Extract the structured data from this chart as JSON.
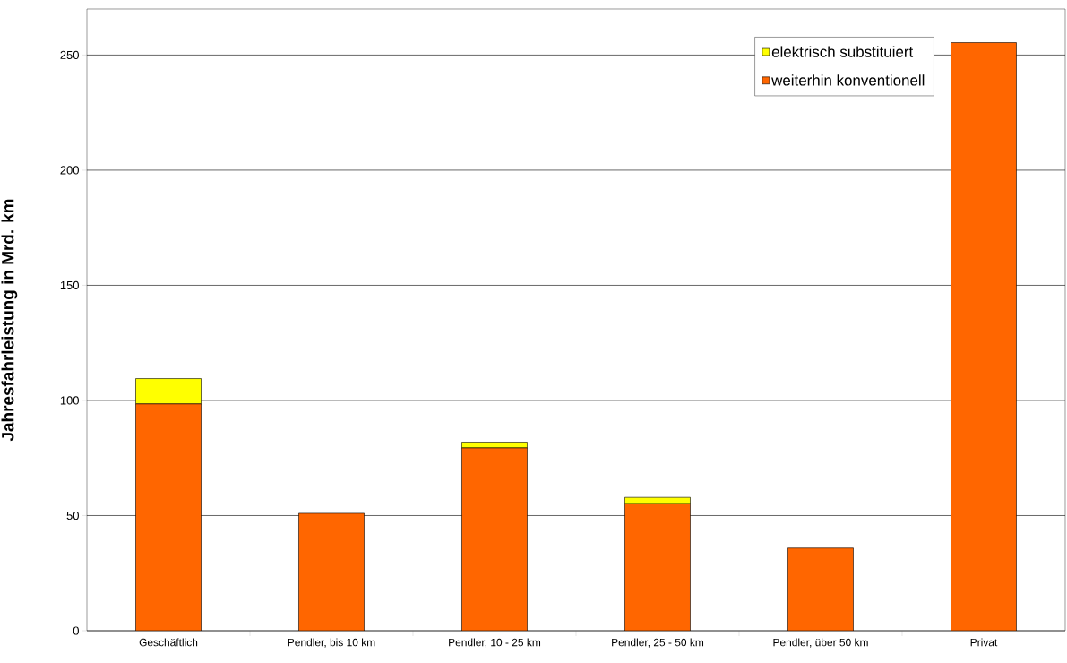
{
  "chart_data": {
    "type": "bar",
    "stacked": true,
    "ylabel": "Jahresfahrleistung in Mrd. km",
    "categories": [
      "Geschäftlich",
      "Pendler, bis 10 km",
      "Pendler, 10 - 25 km",
      "Pendler, 25 - 50 km",
      "Pendler, über 50 km",
      "Privat"
    ],
    "series": [
      {
        "name": "weiterhin konventionell",
        "color": "#ff6600",
        "values": [
          98.5,
          51.0,
          79.4,
          55.2,
          35.9,
          255.4
        ]
      },
      {
        "name": "elektrisch substituiert",
        "color": "#ffff00",
        "values": [
          11.0,
          0,
          2.5,
          2.7,
          0,
          0
        ]
      }
    ],
    "ylim": [
      0,
      270
    ],
    "yticks": [
      0,
      50,
      100,
      150,
      200,
      250
    ],
    "grid": "y",
    "legend": "top right"
  }
}
